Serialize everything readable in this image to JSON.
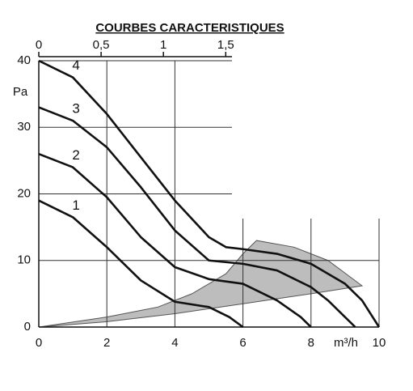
{
  "chart_data": {
    "type": "line",
    "title": "COURBES CARACTERISTIQUES",
    "y_label": "Pa",
    "x_label": "m³/h",
    "xlim": [
      0,
      10
    ],
    "xticks": [
      0,
      2,
      4,
      6,
      8,
      10
    ],
    "ylim": [
      0,
      40
    ],
    "yticks": [
      0,
      10,
      20,
      30,
      40
    ],
    "x2lim": [
      0,
      1.55
    ],
    "x2ticks": [
      0,
      {
        "value": 0.5,
        "label": "0,5"
      },
      1,
      {
        "value": 1.5,
        "label": "1,5"
      }
    ],
    "grid": true,
    "zone": {
      "color": "#bdbdbd",
      "x": [
        0,
        2,
        4,
        6,
        8,
        9.5,
        8.5,
        7.5,
        6.4,
        6.0,
        5.5,
        4.5,
        3.5,
        2
      ],
      "values": [
        0,
        0.8,
        2,
        3.5,
        5,
        6.2,
        10,
        12,
        13,
        11,
        8,
        5,
        3,
        1.5
      ]
    },
    "series": [
      {
        "name": "1",
        "color": "#111111",
        "x": [
          0,
          1,
          2,
          3,
          4,
          5,
          5.6,
          6
        ],
        "values": [
          19,
          16.5,
          12,
          7,
          3.8,
          3,
          1.5,
          0
        ]
      },
      {
        "name": "2",
        "color": "#111111",
        "x": [
          0,
          1,
          2,
          3,
          4,
          5,
          6,
          7,
          7.7,
          8
        ],
        "values": [
          26,
          24,
          19.5,
          13.5,
          9,
          7.2,
          6.5,
          4,
          1.5,
          0
        ]
      },
      {
        "name": "3",
        "color": "#111111",
        "x": [
          0,
          1,
          2,
          3,
          4,
          5,
          6,
          7,
          8,
          8.5,
          9,
          9.3
        ],
        "values": [
          33,
          31,
          27,
          21,
          14.5,
          10,
          9.5,
          8.5,
          6,
          4,
          1.5,
          0
        ]
      },
      {
        "name": "4",
        "color": "#111111",
        "x": [
          0,
          1,
          2,
          3,
          4,
          5,
          5.5,
          6,
          7,
          8,
          9,
          9.5,
          10
        ],
        "values": [
          40,
          37.5,
          32,
          25.5,
          19,
          13.5,
          12,
          11.7,
          11,
          9.5,
          6.5,
          4,
          0
        ]
      }
    ]
  }
}
